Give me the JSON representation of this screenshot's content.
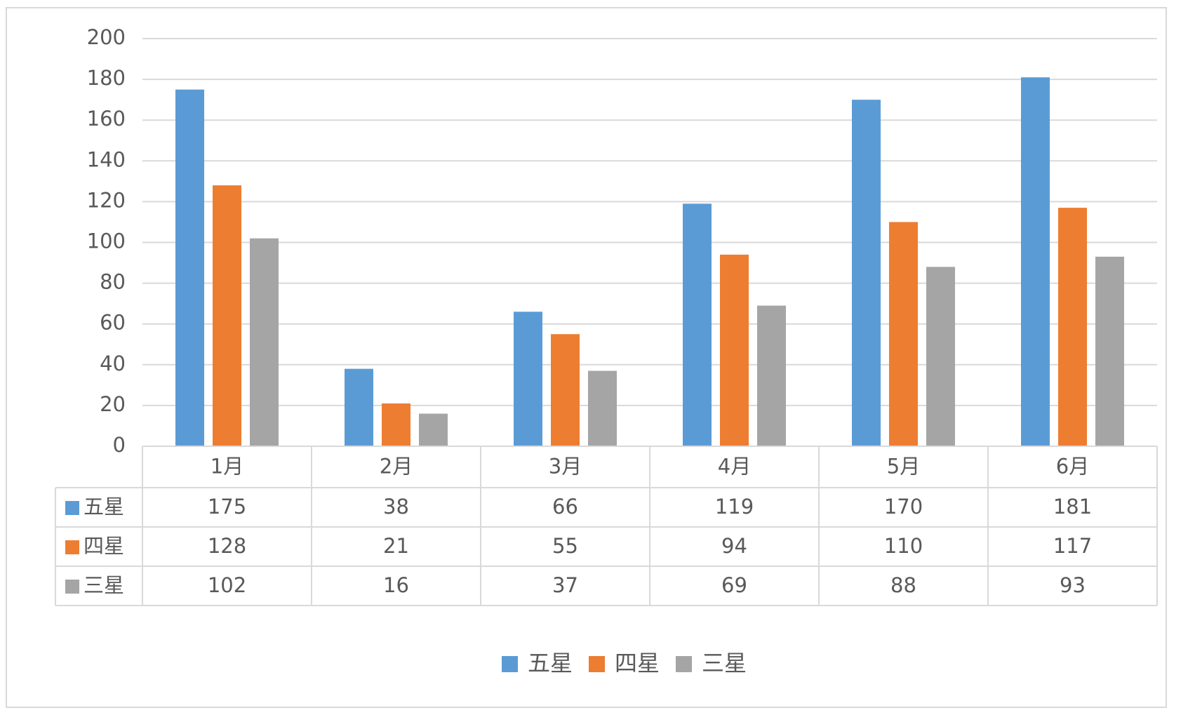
{
  "chart_data": {
    "type": "bar",
    "categories": [
      "1月",
      "2月",
      "3月",
      "4月",
      "5月",
      "6月"
    ],
    "series": [
      {
        "name": "五星",
        "color": "#5b9bd5",
        "values": [
          175,
          38,
          66,
          119,
          170,
          181
        ]
      },
      {
        "name": "四星",
        "color": "#ed7d31",
        "values": [
          128,
          21,
          55,
          94,
          110,
          117
        ]
      },
      {
        "name": "三星",
        "color": "#a5a5a5",
        "values": [
          102,
          16,
          37,
          69,
          88,
          93
        ]
      }
    ],
    "ylim": [
      0,
      200
    ],
    "yticks": [
      0,
      20,
      40,
      60,
      80,
      100,
      120,
      140,
      160,
      180,
      200
    ],
    "grid": true,
    "data_table": true,
    "legend": "bottom"
  }
}
